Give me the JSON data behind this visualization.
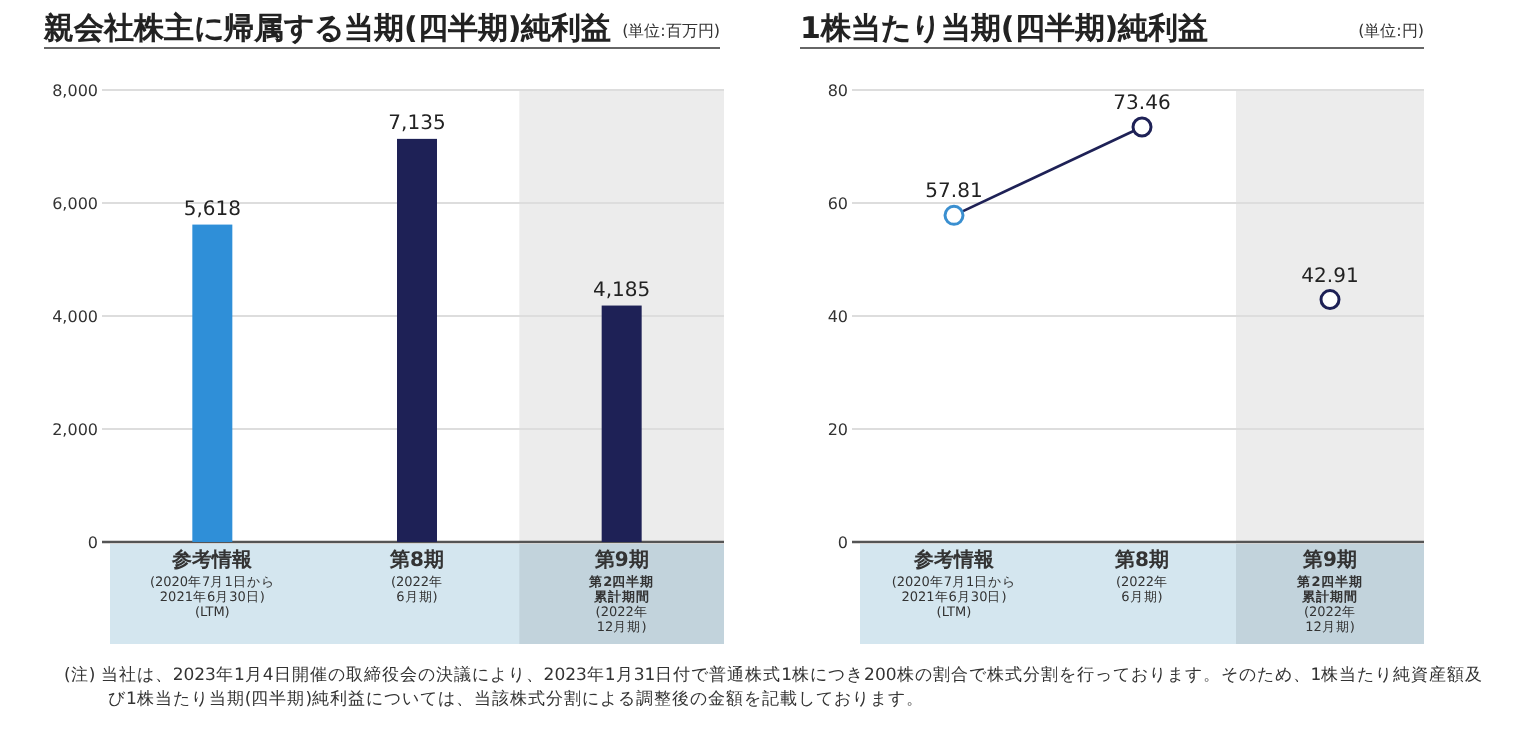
{
  "chart_data": [
    {
      "type": "bar",
      "title": "親会社株主に帰属する当期(四半期)純利益",
      "subtitle": "(単位:百万円)",
      "categories": [
        "参考情報\n(2020年7月1日から\n2021年6月30日)\n(LTM)",
        "第8期\n(2022年\n6月期)",
        "第9期第2四半期累計期間\n(2022年\n12月期)"
      ],
      "values": [
        5618,
        7135,
        4185
      ],
      "colors": [
        "#2f8fd8",
        "#1e2156",
        "#1e2156"
      ],
      "ylim": [
        0,
        8000
      ],
      "yticks": [
        0,
        {
          "value": 2000,
          "label": "2,000"
        },
        {
          "value": 4000,
          "label": "4,000"
        },
        {
          "value": 6000,
          "label": "6,000"
        },
        {
          "value": 8000,
          "label": "8,000"
        }
      ],
      "grid": "y",
      "data_labels": true,
      "value_labels": [
        "5,618",
        "7,135",
        "4,185"
      ],
      "bands": [
        {
          "axis": "x",
          "from": "第9期第2四半期累計期間\n(2022年\n12月期)",
          "to": "第9期第2四半期累計期間\n(2022年\n12月期)",
          "color": "#ececec"
        }
      ],
      "annotations": [
        "(注) 当社は、2023年1月4日開催の取締役会の決議により、2023年1月31日付で普通株式1株につき200株の割合で株式分割を行っております。そのため、1株当たり純資産額及び1株当たり当期(四半期)純利益については、当該株式分割による調整後の金額を記載しております。"
      ]
    },
    {
      "type": "line",
      "title": "1株当たり当期(四半期)純利益",
      "subtitle": "(単位:円)",
      "categories": [
        "参考情報\n(2020年7月1日から\n2021年6月30日)\n(LTM)",
        "第8期\n(2022年\n6月期)",
        "第9期第2四半期累計期間\n(2022年\n12月期)"
      ],
      "series": [
        {
          "type": "line",
          "color": "#1e2156",
          "colors": [
            "#3a8fd0",
            "#1e2156",
            null
          ],
          "values": [
            57.81,
            73.46,
            null
          ]
        },
        {
          "type": "scatter",
          "color": "#1e2156",
          "values": [
            null,
            null,
            42.91
          ]
        }
      ],
      "marker": "circle",
      "line_style": "solid",
      "ylim": [
        0,
        80
      ],
      "yticks": [
        0,
        20,
        40,
        60,
        80
      ],
      "grid": "y",
      "data_labels": true,
      "bands": [
        {
          "axis": "x",
          "from": "第9期第2四半期累計期間\n(2022年\n12月期)",
          "to": "第9期第2四半期累計期間\n(2022年\n12月期)",
          "color": "#ececec"
        }
      ]
    }
  ]
}
